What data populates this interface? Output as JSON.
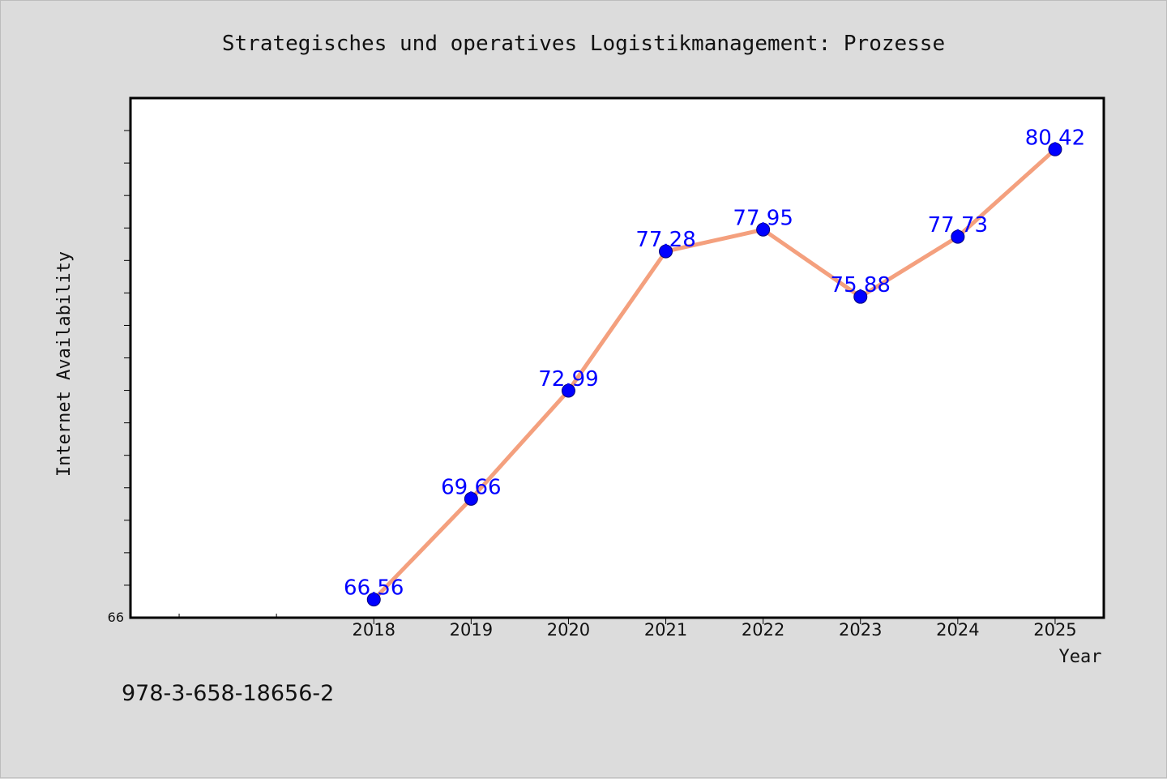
{
  "chart_data": {
    "type": "line",
    "title": "Strategisches und operatives Logistikmanagement: Prozesse",
    "xlabel": "Year",
    "ylabel": "Internet Availability",
    "x": [
      "2018",
      "2019",
      "2020",
      "2021",
      "2022",
      "2023",
      "2024",
      "2025"
    ],
    "series": [
      {
        "values": [
          66.56,
          69.66,
          72.99,
          77.28,
          77.95,
          75.88,
          77.73,
          80.42
        ],
        "data_labels": [
          "66.56",
          "69.66",
          "72.99",
          "77.28",
          "77.95",
          "75.88",
          "77.73",
          "80.42"
        ],
        "line_color": "#f4a07e",
        "marker_color": "#0000ff"
      }
    ],
    "x_range": [
      "2015.5",
      "2025.5"
    ],
    "ylim": [
      66,
      82
    ],
    "y_tick_labels": [
      "66"
    ],
    "grid": false,
    "legend": "none",
    "label_color": "#0000ff"
  },
  "footer": {
    "isbn": "978-3-658-18656-2"
  }
}
